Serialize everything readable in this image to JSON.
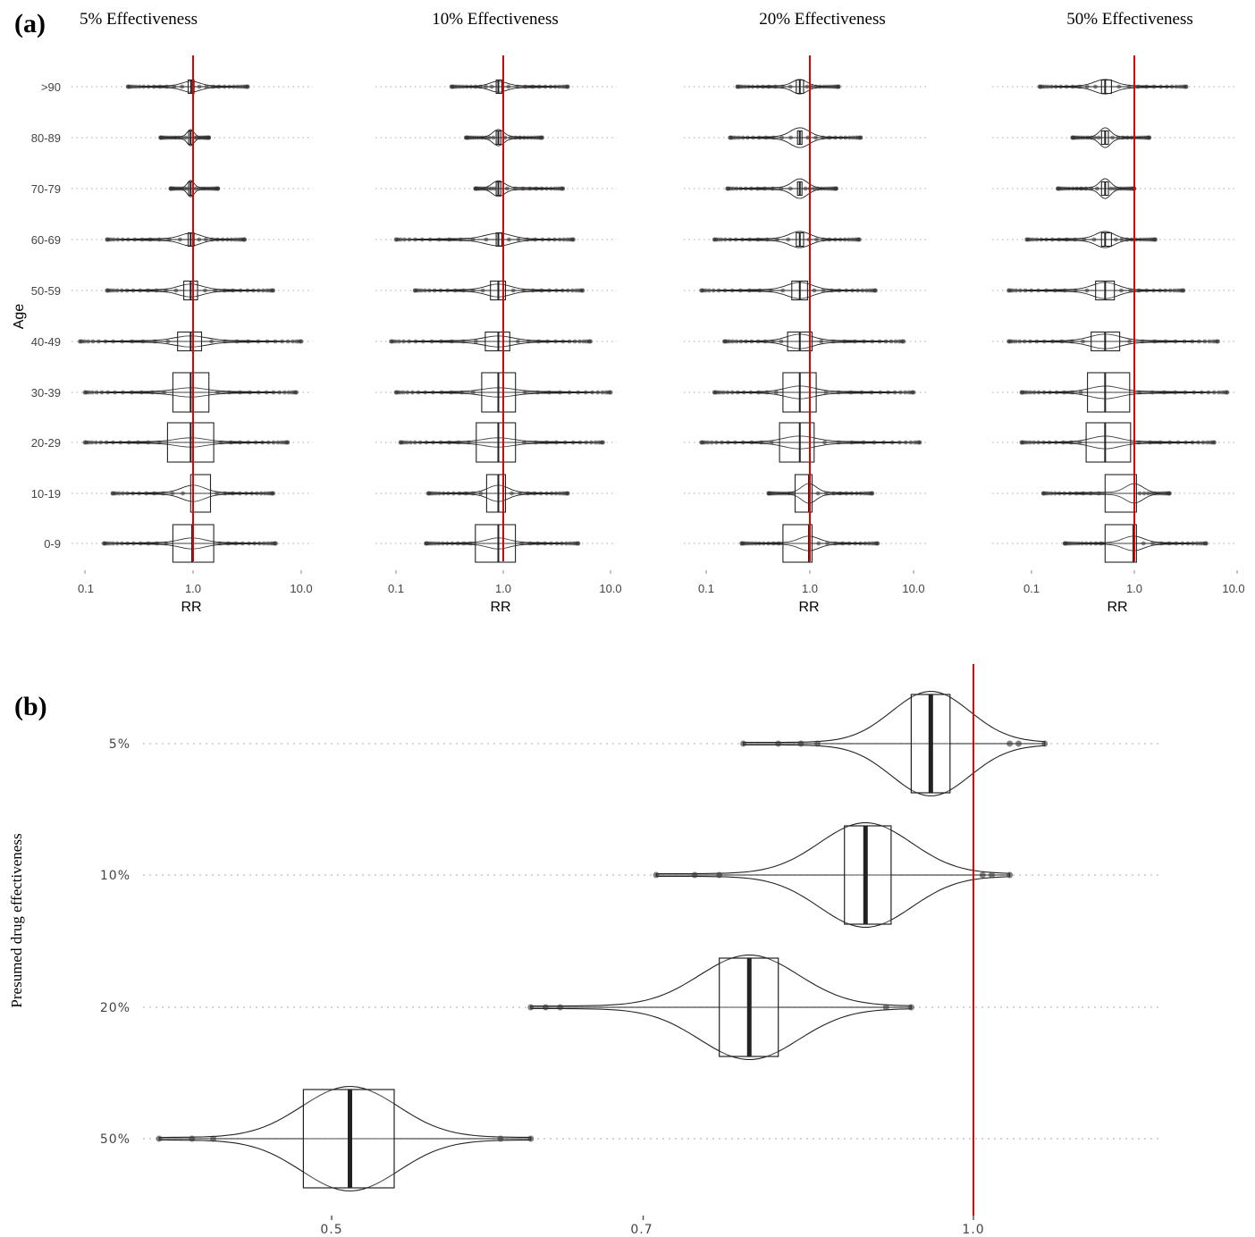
{
  "panel_a": {
    "label": "(a)",
    "y_axis_title": "Age",
    "x_axis_title": "RR",
    "age_groups": [
      ">90",
      "80-89",
      "70-79",
      "60-69",
      "50-59",
      "40-49",
      "30-39",
      "20-29",
      "10-19",
      "0-9"
    ],
    "x_ticks": [
      "0.1",
      "1.0",
      "10.0"
    ]
  },
  "panel_b": {
    "label": "(b)",
    "y_axis_title": "Presumed drug effectiveness",
    "x_ticks": [
      "0.5",
      "0.7",
      "1.0"
    ]
  },
  "colors": {
    "reference_line": "#e00000",
    "box_stroke": "#222222",
    "median": "#222222",
    "points": "#333333",
    "gridline": "#bbbbbb"
  },
  "chart_data": [
    {
      "type": "boxplot",
      "subtype": "violin-box with outlier points, faceted",
      "panel": "a",
      "ylabel": "Age",
      "xlabel": "RR",
      "x_scale": "log10",
      "xlim": [
        0.1,
        10
      ],
      "reference_line_x": 1.0,
      "categories": [
        ">90",
        "80-89",
        "70-79",
        "60-69",
        "50-59",
        "40-49",
        "30-39",
        "20-29",
        "10-19",
        "0-9"
      ],
      "grid": "dotted horizontal",
      "facets": [
        {
          "title": "5% Effectiveness",
          "groups": [
            {
              "age": ">90",
              "q1": 0.9,
              "median": 0.96,
              "q3": 1.02,
              "min": 0.25,
              "max": 3.2
            },
            {
              "age": "80-89",
              "q1": 0.91,
              "median": 0.95,
              "q3": 1.0,
              "min": 0.5,
              "max": 1.4
            },
            {
              "age": "70-79",
              "q1": 0.91,
              "median": 0.95,
              "q3": 1.0,
              "min": 0.62,
              "max": 1.7
            },
            {
              "age": "60-69",
              "q1": 0.9,
              "median": 0.95,
              "q3": 1.02,
              "min": 0.16,
              "max": 3.0
            },
            {
              "age": "50-59",
              "q1": 0.82,
              "median": 0.95,
              "q3": 1.1,
              "min": 0.16,
              "max": 5.5
            },
            {
              "age": "40-49",
              "q1": 0.72,
              "median": 0.95,
              "q3": 1.2,
              "min": 0.09,
              "max": 10.0
            },
            {
              "age": "30-39",
              "q1": 0.65,
              "median": 0.95,
              "q3": 1.4,
              "min": 0.1,
              "max": 9.0
            },
            {
              "age": "20-29",
              "q1": 0.58,
              "median": 0.95,
              "q3": 1.55,
              "min": 0.1,
              "max": 7.5
            },
            {
              "age": "10-19",
              "q1": 0.95,
              "median": 1.0,
              "q3": 1.45,
              "min": 0.18,
              "max": 5.5
            },
            {
              "age": "0-9",
              "q1": 0.65,
              "median": 0.98,
              "q3": 1.55,
              "min": 0.15,
              "max": 5.8
            }
          ]
        },
        {
          "title": "10% Effectiveness",
          "groups": [
            {
              "age": ">90",
              "q1": 0.86,
              "median": 0.9,
              "q3": 0.97,
              "min": 0.33,
              "max": 4.0
            },
            {
              "age": "80-89",
              "q1": 0.86,
              "median": 0.9,
              "q3": 0.95,
              "min": 0.45,
              "max": 2.3
            },
            {
              "age": "70-79",
              "q1": 0.86,
              "median": 0.9,
              "q3": 0.95,
              "min": 0.55,
              "max": 3.6
            },
            {
              "age": "60-69",
              "q1": 0.86,
              "median": 0.9,
              "q3": 0.97,
              "min": 0.1,
              "max": 4.5
            },
            {
              "age": "50-59",
              "q1": 0.76,
              "median": 0.9,
              "q3": 1.05,
              "min": 0.15,
              "max": 5.5
            },
            {
              "age": "40-49",
              "q1": 0.68,
              "median": 0.9,
              "q3": 1.15,
              "min": 0.09,
              "max": 6.5
            },
            {
              "age": "30-39",
              "q1": 0.63,
              "median": 0.9,
              "q3": 1.3,
              "min": 0.1,
              "max": 10.0
            },
            {
              "age": "20-29",
              "q1": 0.56,
              "median": 0.9,
              "q3": 1.3,
              "min": 0.11,
              "max": 8.5
            },
            {
              "age": "10-19",
              "q1": 0.7,
              "median": 0.9,
              "q3": 1.05,
              "min": 0.2,
              "max": 4.0
            },
            {
              "age": "0-9",
              "q1": 0.55,
              "median": 0.9,
              "q3": 1.3,
              "min": 0.19,
              "max": 5.0
            }
          ]
        },
        {
          "title": "20% Effectiveness",
          "groups": [
            {
              "age": ">90",
              "q1": 0.74,
              "median": 0.8,
              "q3": 0.87,
              "min": 0.2,
              "max": 1.9
            },
            {
              "age": "80-89",
              "q1": 0.76,
              "median": 0.8,
              "q3": 0.84,
              "min": 0.17,
              "max": 3.1
            },
            {
              "age": "70-79",
              "q1": 0.76,
              "median": 0.8,
              "q3": 0.84,
              "min": 0.16,
              "max": 1.8
            },
            {
              "age": "60-69",
              "q1": 0.74,
              "median": 0.8,
              "q3": 0.87,
              "min": 0.12,
              "max": 3.0
            },
            {
              "age": "50-59",
              "q1": 0.67,
              "median": 0.8,
              "q3": 0.95,
              "min": 0.09,
              "max": 4.3
            },
            {
              "age": "40-49",
              "q1": 0.61,
              "median": 0.8,
              "q3": 1.05,
              "min": 0.15,
              "max": 8.0
            },
            {
              "age": "30-39",
              "q1": 0.55,
              "median": 0.8,
              "q3": 1.15,
              "min": 0.12,
              "max": 10.0
            },
            {
              "age": "20-29",
              "q1": 0.51,
              "median": 0.8,
              "q3": 1.1,
              "min": 0.09,
              "max": 11.5
            },
            {
              "age": "10-19",
              "q1": 0.72,
              "median": 0.98,
              "q3": 1.05,
              "min": 0.4,
              "max": 4.0
            },
            {
              "age": "0-9",
              "q1": 0.55,
              "median": 0.98,
              "q3": 1.05,
              "min": 0.22,
              "max": 4.5
            }
          ]
        },
        {
          "title": "50% Effectiveness",
          "groups": [
            {
              "age": ">90",
              "q1": 0.48,
              "median": 0.52,
              "q3": 0.6,
              "min": 0.12,
              "max": 3.2
            },
            {
              "age": "80-89",
              "q1": 0.48,
              "median": 0.52,
              "q3": 0.56,
              "min": 0.25,
              "max": 1.4
            },
            {
              "age": "70-79",
              "q1": 0.48,
              "median": 0.52,
              "q3": 0.56,
              "min": 0.18,
              "max": 1.0
            },
            {
              "age": "60-69",
              "q1": 0.48,
              "median": 0.52,
              "q3": 0.6,
              "min": 0.09,
              "max": 1.6
            },
            {
              "age": "50-59",
              "q1": 0.42,
              "median": 0.52,
              "q3": 0.64,
              "min": 0.06,
              "max": 3.0
            },
            {
              "age": "40-49",
              "q1": 0.38,
              "median": 0.52,
              "q3": 0.72,
              "min": 0.06,
              "max": 6.5
            },
            {
              "age": "30-39",
              "q1": 0.35,
              "median": 0.52,
              "q3": 0.9,
              "min": 0.08,
              "max": 8.0
            },
            {
              "age": "20-29",
              "q1": 0.34,
              "median": 0.52,
              "q3": 0.92,
              "min": 0.08,
              "max": 6.0
            },
            {
              "age": "10-19",
              "q1": 0.52,
              "median": 1.0,
              "q3": 1.05,
              "min": 0.13,
              "max": 2.2
            },
            {
              "age": "0-9",
              "q1": 0.52,
              "median": 0.98,
              "q3": 1.05,
              "min": 0.21,
              "max": 5.0
            }
          ]
        }
      ]
    },
    {
      "type": "boxplot",
      "subtype": "violin-box with outlier points",
      "panel": "b",
      "ylabel": "Presumed drug effectiveness",
      "xlabel": "",
      "x_scale": "log10",
      "xlim": [
        0.4,
        1.12
      ],
      "reference_line_x": 1.0,
      "categories": [
        "5%",
        "10%",
        "20%",
        "50%"
      ],
      "grid": "dotted horizontal",
      "series": [
        {
          "category": "5%",
          "q1": 0.935,
          "median": 0.955,
          "q3": 0.975,
          "whisker_low": 0.78,
          "whisker_high": 1.08,
          "outliers": [
            0.78,
            0.81,
            0.83,
            0.845,
            1.04,
            1.05,
            1.08
          ]
        },
        {
          "category": "10%",
          "q1": 0.87,
          "median": 0.89,
          "q3": 0.915,
          "whisker_low": 0.71,
          "whisker_high": 1.04,
          "outliers": [
            0.71,
            0.74,
            0.76,
            1.01,
            1.02,
            1.04
          ]
        },
        {
          "category": "20%",
          "q1": 0.76,
          "median": 0.785,
          "q3": 0.81,
          "whisker_low": 0.62,
          "whisker_high": 0.935,
          "outliers": [
            0.62,
            0.63,
            0.64,
            0.91,
            0.935
          ]
        },
        {
          "category": "50%",
          "q1": 0.485,
          "median": 0.51,
          "q3": 0.535,
          "whisker_low": 0.415,
          "whisker_high": 0.62,
          "outliers": [
            0.415,
            0.43,
            0.44,
            0.6,
            0.62
          ]
        }
      ]
    }
  ]
}
